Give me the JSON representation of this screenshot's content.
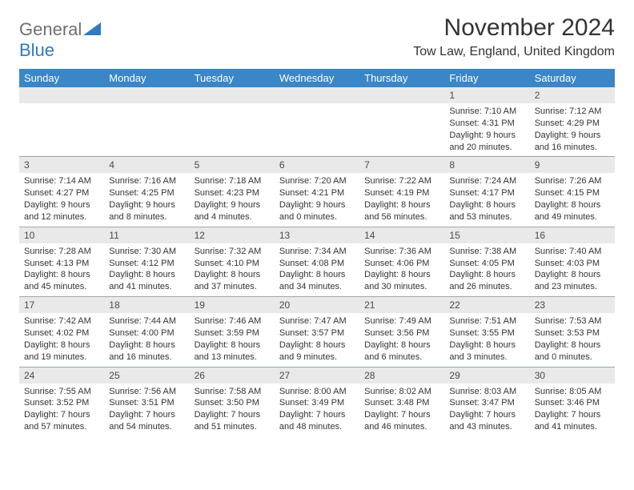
{
  "logo": {
    "part1": "General",
    "part2": "Blue"
  },
  "title": "November 2024",
  "location": "Tow Law, England, United Kingdom",
  "header_bg": "#3b86c6",
  "weekdays": [
    "Sunday",
    "Monday",
    "Tuesday",
    "Wednesday",
    "Thursday",
    "Friday",
    "Saturday"
  ],
  "colors": {
    "header_bg": "#3b86c6",
    "header_text": "#ffffff",
    "daynum_bg": "#e9e9e9",
    "daynum_text": "#4a4a4a",
    "body_text": "#333333",
    "logo_gray": "#6f6f6f",
    "logo_blue": "#2f7ac0",
    "divider": "#9aa7b3"
  },
  "weeks": [
    [
      {
        "n": "",
        "sunrise": "",
        "sunset": "",
        "daylight": ""
      },
      {
        "n": "",
        "sunrise": "",
        "sunset": "",
        "daylight": ""
      },
      {
        "n": "",
        "sunrise": "",
        "sunset": "",
        "daylight": ""
      },
      {
        "n": "",
        "sunrise": "",
        "sunset": "",
        "daylight": ""
      },
      {
        "n": "",
        "sunrise": "",
        "sunset": "",
        "daylight": ""
      },
      {
        "n": "1",
        "sunrise": "Sunrise: 7:10 AM",
        "sunset": "Sunset: 4:31 PM",
        "daylight": "Daylight: 9 hours and 20 minutes."
      },
      {
        "n": "2",
        "sunrise": "Sunrise: 7:12 AM",
        "sunset": "Sunset: 4:29 PM",
        "daylight": "Daylight: 9 hours and 16 minutes."
      }
    ],
    [
      {
        "n": "3",
        "sunrise": "Sunrise: 7:14 AM",
        "sunset": "Sunset: 4:27 PM",
        "daylight": "Daylight: 9 hours and 12 minutes."
      },
      {
        "n": "4",
        "sunrise": "Sunrise: 7:16 AM",
        "sunset": "Sunset: 4:25 PM",
        "daylight": "Daylight: 9 hours and 8 minutes."
      },
      {
        "n": "5",
        "sunrise": "Sunrise: 7:18 AM",
        "sunset": "Sunset: 4:23 PM",
        "daylight": "Daylight: 9 hours and 4 minutes."
      },
      {
        "n": "6",
        "sunrise": "Sunrise: 7:20 AM",
        "sunset": "Sunset: 4:21 PM",
        "daylight": "Daylight: 9 hours and 0 minutes."
      },
      {
        "n": "7",
        "sunrise": "Sunrise: 7:22 AM",
        "sunset": "Sunset: 4:19 PM",
        "daylight": "Daylight: 8 hours and 56 minutes."
      },
      {
        "n": "8",
        "sunrise": "Sunrise: 7:24 AM",
        "sunset": "Sunset: 4:17 PM",
        "daylight": "Daylight: 8 hours and 53 minutes."
      },
      {
        "n": "9",
        "sunrise": "Sunrise: 7:26 AM",
        "sunset": "Sunset: 4:15 PM",
        "daylight": "Daylight: 8 hours and 49 minutes."
      }
    ],
    [
      {
        "n": "10",
        "sunrise": "Sunrise: 7:28 AM",
        "sunset": "Sunset: 4:13 PM",
        "daylight": "Daylight: 8 hours and 45 minutes."
      },
      {
        "n": "11",
        "sunrise": "Sunrise: 7:30 AM",
        "sunset": "Sunset: 4:12 PM",
        "daylight": "Daylight: 8 hours and 41 minutes."
      },
      {
        "n": "12",
        "sunrise": "Sunrise: 7:32 AM",
        "sunset": "Sunset: 4:10 PM",
        "daylight": "Daylight: 8 hours and 37 minutes."
      },
      {
        "n": "13",
        "sunrise": "Sunrise: 7:34 AM",
        "sunset": "Sunset: 4:08 PM",
        "daylight": "Daylight: 8 hours and 34 minutes."
      },
      {
        "n": "14",
        "sunrise": "Sunrise: 7:36 AM",
        "sunset": "Sunset: 4:06 PM",
        "daylight": "Daylight: 8 hours and 30 minutes."
      },
      {
        "n": "15",
        "sunrise": "Sunrise: 7:38 AM",
        "sunset": "Sunset: 4:05 PM",
        "daylight": "Daylight: 8 hours and 26 minutes."
      },
      {
        "n": "16",
        "sunrise": "Sunrise: 7:40 AM",
        "sunset": "Sunset: 4:03 PM",
        "daylight": "Daylight: 8 hours and 23 minutes."
      }
    ],
    [
      {
        "n": "17",
        "sunrise": "Sunrise: 7:42 AM",
        "sunset": "Sunset: 4:02 PM",
        "daylight": "Daylight: 8 hours and 19 minutes."
      },
      {
        "n": "18",
        "sunrise": "Sunrise: 7:44 AM",
        "sunset": "Sunset: 4:00 PM",
        "daylight": "Daylight: 8 hours and 16 minutes."
      },
      {
        "n": "19",
        "sunrise": "Sunrise: 7:46 AM",
        "sunset": "Sunset: 3:59 PM",
        "daylight": "Daylight: 8 hours and 13 minutes."
      },
      {
        "n": "20",
        "sunrise": "Sunrise: 7:47 AM",
        "sunset": "Sunset: 3:57 PM",
        "daylight": "Daylight: 8 hours and 9 minutes."
      },
      {
        "n": "21",
        "sunrise": "Sunrise: 7:49 AM",
        "sunset": "Sunset: 3:56 PM",
        "daylight": "Daylight: 8 hours and 6 minutes."
      },
      {
        "n": "22",
        "sunrise": "Sunrise: 7:51 AM",
        "sunset": "Sunset: 3:55 PM",
        "daylight": "Daylight: 8 hours and 3 minutes."
      },
      {
        "n": "23",
        "sunrise": "Sunrise: 7:53 AM",
        "sunset": "Sunset: 3:53 PM",
        "daylight": "Daylight: 8 hours and 0 minutes."
      }
    ],
    [
      {
        "n": "24",
        "sunrise": "Sunrise: 7:55 AM",
        "sunset": "Sunset: 3:52 PM",
        "daylight": "Daylight: 7 hours and 57 minutes."
      },
      {
        "n": "25",
        "sunrise": "Sunrise: 7:56 AM",
        "sunset": "Sunset: 3:51 PM",
        "daylight": "Daylight: 7 hours and 54 minutes."
      },
      {
        "n": "26",
        "sunrise": "Sunrise: 7:58 AM",
        "sunset": "Sunset: 3:50 PM",
        "daylight": "Daylight: 7 hours and 51 minutes."
      },
      {
        "n": "27",
        "sunrise": "Sunrise: 8:00 AM",
        "sunset": "Sunset: 3:49 PM",
        "daylight": "Daylight: 7 hours and 48 minutes."
      },
      {
        "n": "28",
        "sunrise": "Sunrise: 8:02 AM",
        "sunset": "Sunset: 3:48 PM",
        "daylight": "Daylight: 7 hours and 46 minutes."
      },
      {
        "n": "29",
        "sunrise": "Sunrise: 8:03 AM",
        "sunset": "Sunset: 3:47 PM",
        "daylight": "Daylight: 7 hours and 43 minutes."
      },
      {
        "n": "30",
        "sunrise": "Sunrise: 8:05 AM",
        "sunset": "Sunset: 3:46 PM",
        "daylight": "Daylight: 7 hours and 41 minutes."
      }
    ]
  ]
}
